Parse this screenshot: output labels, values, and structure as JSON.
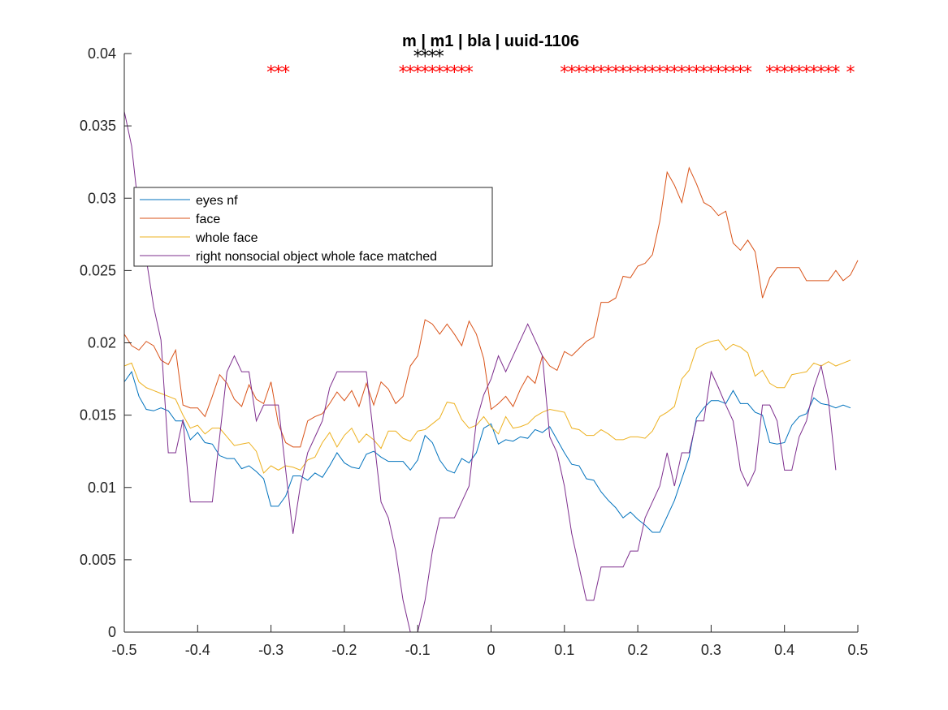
{
  "chart_data": {
    "type": "line",
    "title": "m | m1 | bla | uuid-1106",
    "xlabel": "",
    "ylabel": "",
    "xlim": [
      -0.5,
      0.5
    ],
    "ylim": [
      0,
      0.04
    ],
    "xticks": [
      -0.5,
      -0.4,
      -0.3,
      -0.2,
      -0.1,
      0,
      0.1,
      0.2,
      0.3,
      0.4,
      0.5
    ],
    "xtick_labels": [
      "-0.5",
      "-0.4",
      "-0.3",
      "-0.2",
      "-0.1",
      "0",
      "0.1",
      "0.2",
      "0.3",
      "0.4",
      "0.5"
    ],
    "yticks": [
      0,
      0.005,
      0.01,
      0.015,
      0.02,
      0.025,
      0.03,
      0.035,
      0.04
    ],
    "ytick_labels": [
      "0",
      "0.005",
      "0.01",
      "0.015",
      "0.02",
      "0.025",
      "0.03",
      "0.035",
      "0.04"
    ],
    "grid": false,
    "legend_position": "upper-left",
    "x_start": -0.5,
    "x_step": 0.01,
    "series": [
      {
        "name": "eyes nf",
        "color": "#0072BD",
        "values": [
          0.0173,
          0.018,
          0.0163,
          0.0154,
          0.0153,
          0.0155,
          0.0153,
          0.0146,
          0.0146,
          0.0133,
          0.0138,
          0.0131,
          0.013,
          0.0122,
          0.012,
          0.012,
          0.0113,
          0.0115,
          0.0111,
          0.0106,
          0.0087,
          0.0087,
          0.0094,
          0.0108,
          0.0108,
          0.0105,
          0.011,
          0.0107,
          0.0115,
          0.0124,
          0.0117,
          0.0114,
          0.0113,
          0.0123,
          0.0125,
          0.0121,
          0.0118,
          0.0118,
          0.0118,
          0.0112,
          0.0119,
          0.0136,
          0.0131,
          0.0119,
          0.0112,
          0.011,
          0.012,
          0.0117,
          0.0124,
          0.0141,
          0.0144,
          0.013,
          0.0133,
          0.0132,
          0.0135,
          0.0134,
          0.014,
          0.0138,
          0.0142,
          0.0133,
          0.0124,
          0.0116,
          0.0115,
          0.0106,
          0.0105,
          0.0097,
          0.0091,
          0.0086,
          0.0079,
          0.0083,
          0.0078,
          0.0074,
          0.0069,
          0.0069,
          0.008,
          0.0091,
          0.0106,
          0.0121,
          0.0148,
          0.0155,
          0.016,
          0.016,
          0.0158,
          0.0167,
          0.0158,
          0.0158,
          0.0152,
          0.015,
          0.0131,
          0.013,
          0.0131,
          0.0143,
          0.0149,
          0.0151,
          0.0162,
          0.0158,
          0.0157,
          0.0155,
          0.0157,
          0.0155
        ]
      },
      {
        "name": "face",
        "color": "#D95319",
        "values": [
          0.0206,
          0.0198,
          0.0195,
          0.0201,
          0.0198,
          0.0188,
          0.0185,
          0.0195,
          0.0157,
          0.0155,
          0.0155,
          0.0149,
          0.0163,
          0.0178,
          0.0172,
          0.0161,
          0.0156,
          0.0171,
          0.0161,
          0.0158,
          0.0173,
          0.0144,
          0.0131,
          0.0128,
          0.0128,
          0.0146,
          0.0149,
          0.0151,
          0.0158,
          0.0166,
          0.016,
          0.0167,
          0.0156,
          0.0172,
          0.0157,
          0.0173,
          0.0168,
          0.0158,
          0.0163,
          0.0184,
          0.0191,
          0.0216,
          0.0213,
          0.0206,
          0.0213,
          0.0206,
          0.0198,
          0.0215,
          0.0206,
          0.0189,
          0.0154,
          0.0158,
          0.0163,
          0.0156,
          0.0168,
          0.0177,
          0.0172,
          0.0191,
          0.0184,
          0.0181,
          0.0194,
          0.0191,
          0.0196,
          0.0201,
          0.0204,
          0.0228,
          0.0228,
          0.0231,
          0.0246,
          0.0245,
          0.0253,
          0.0255,
          0.0261,
          0.0284,
          0.0318,
          0.0309,
          0.0297,
          0.0321,
          0.031,
          0.0297,
          0.0294,
          0.0288,
          0.0291,
          0.0269,
          0.0264,
          0.0271,
          0.0263,
          0.0231,
          0.0245,
          0.0252,
          0.0252,
          0.0252,
          0.0252,
          0.0243,
          0.0243,
          0.0243,
          0.0243,
          0.025,
          0.0243,
          0.0247,
          0.0257
        ]
      },
      {
        "name": "whole face",
        "color": "#EDB120",
        "values": [
          0.0184,
          0.0186,
          0.0173,
          0.0169,
          0.0167,
          0.0165,
          0.0163,
          0.0161,
          0.015,
          0.0141,
          0.0143,
          0.0137,
          0.0141,
          0.0141,
          0.0135,
          0.0129,
          0.013,
          0.0131,
          0.0125,
          0.011,
          0.0115,
          0.0112,
          0.0115,
          0.0114,
          0.0112,
          0.0119,
          0.0121,
          0.0131,
          0.0138,
          0.0128,
          0.0136,
          0.0141,
          0.0131,
          0.0137,
          0.0133,
          0.0127,
          0.0139,
          0.0139,
          0.0134,
          0.0132,
          0.0139,
          0.014,
          0.0144,
          0.0148,
          0.0159,
          0.0158,
          0.0147,
          0.0141,
          0.0143,
          0.0149,
          0.0142,
          0.0137,
          0.0149,
          0.0141,
          0.0142,
          0.0144,
          0.0149,
          0.0152,
          0.0154,
          0.0153,
          0.0152,
          0.0141,
          0.014,
          0.0136,
          0.0136,
          0.014,
          0.0137,
          0.0133,
          0.0133,
          0.0135,
          0.0135,
          0.0134,
          0.0139,
          0.0149,
          0.0152,
          0.0156,
          0.0175,
          0.0181,
          0.0196,
          0.0199,
          0.0201,
          0.0202,
          0.0195,
          0.0199,
          0.0197,
          0.0193,
          0.0177,
          0.0181,
          0.0172,
          0.0169,
          0.0169,
          0.0178,
          0.0179,
          0.018,
          0.0186,
          0.0184,
          0.0187,
          0.0184,
          0.0186,
          0.0188
        ]
      },
      {
        "name": "right nonsocial object whole face matched",
        "color": "#7E2F8E",
        "values": [
          0.036,
          0.0336,
          0.029,
          0.0258,
          0.0225,
          0.0202,
          0.0124,
          0.0124,
          0.0147,
          0.009,
          0.009,
          0.009,
          0.009,
          0.0135,
          0.018,
          0.0191,
          0.018,
          0.018,
          0.0146,
          0.0157,
          0.0157,
          0.0157,
          0.0112,
          0.0068,
          0.0101,
          0.0124,
          0.0135,
          0.0146,
          0.0169,
          0.018,
          0.018,
          0.018,
          0.018,
          0.018,
          0.0135,
          0.009,
          0.0079,
          0.0056,
          0.0022,
          0.0,
          0.0,
          0.0022,
          0.0056,
          0.0079,
          0.0079,
          0.0079,
          0.009,
          0.0101,
          0.0146,
          0.0164,
          0.0175,
          0.0191,
          0.018,
          0.0191,
          0.0202,
          0.0213,
          0.0202,
          0.0191,
          0.0135,
          0.0124,
          0.0101,
          0.0068,
          0.0045,
          0.0022,
          0.0022,
          0.0045,
          0.0045,
          0.0045,
          0.0045,
          0.0056,
          0.0056,
          0.0079,
          0.009,
          0.0101,
          0.0124,
          0.0101,
          0.0124,
          0.0124,
          0.0146,
          0.0146,
          0.018,
          0.0169,
          0.0157,
          0.0146,
          0.0112,
          0.0101,
          0.0112,
          0.0157,
          0.0157,
          0.0146,
          0.0112,
          0.0112,
          0.0135,
          0.0146,
          0.0169,
          0.0184,
          0.016,
          0.0112
        ]
      }
    ],
    "significance_markers": [
      {
        "color": "#FF0000",
        "y": 0.0388,
        "x": [
          -0.3,
          -0.29,
          -0.28,
          -0.12,
          -0.11,
          -0.1,
          -0.09,
          -0.08,
          -0.07,
          -0.06,
          -0.05,
          -0.04,
          -0.03,
          0.1,
          0.11,
          0.12,
          0.13,
          0.14,
          0.15,
          0.16,
          0.17,
          0.18,
          0.19,
          0.2,
          0.21,
          0.22,
          0.23,
          0.24,
          0.25,
          0.26,
          0.27,
          0.28,
          0.29,
          0.3,
          0.31,
          0.32,
          0.33,
          0.34,
          0.35,
          0.38,
          0.39,
          0.4,
          0.41,
          0.42,
          0.43,
          0.44,
          0.45,
          0.46,
          0.47,
          0.49
        ]
      },
      {
        "color": "#000000",
        "y": 0.0399,
        "x": [
          -0.1,
          -0.09,
          -0.08,
          -0.07
        ]
      }
    ]
  }
}
